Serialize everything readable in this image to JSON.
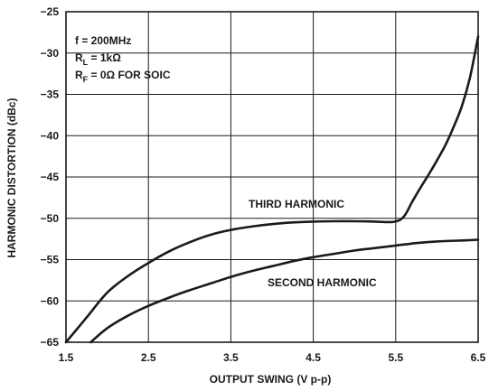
{
  "chart_data": {
    "type": "line",
    "xlabel": "OUTPUT SWING (V p-p)",
    "ylabel": "HARMONIC DISTORTION (dBc)",
    "xlim": [
      1.5,
      6.5
    ],
    "ylim": [
      -65,
      -25
    ],
    "grid": true,
    "x_ticks": [
      1.5,
      2.5,
      3.5,
      4.5,
      5.5,
      6.5
    ],
    "x_tick_labels": [
      "1.5",
      "2.5",
      "3.5",
      "4.5",
      "5.5",
      "6.5"
    ],
    "y_ticks": [
      -25,
      -30,
      -35,
      -40,
      -45,
      -50,
      -55,
      -60,
      -65
    ],
    "y_tick_labels": [
      "−25",
      "−30",
      "−35",
      "−40",
      "−45",
      "−50",
      "−55",
      "−60",
      "−65"
    ],
    "conditions": {
      "freq": "f = 200MHz",
      "rl_main": "R",
      "rl_sub": "L",
      "rl_rest": " = 1kΩ",
      "rf_main": "R",
      "rf_sub": "F",
      "rf_rest": " = 0Ω FOR SOIC"
    },
    "series": [
      {
        "name": "THIRD HARMONIC",
        "x": [
          1.5,
          1.75,
          2.0,
          2.25,
          2.5,
          2.75,
          3.0,
          3.25,
          3.5,
          3.75,
          4.0,
          4.25,
          4.5,
          4.75,
          5.0,
          5.25,
          5.45,
          5.55,
          5.62,
          5.7,
          5.8,
          5.9,
          6.0,
          6.1,
          6.2,
          6.3,
          6.4,
          6.5
        ],
        "y": [
          -65.0,
          -62.0,
          -59.0,
          -57.0,
          -55.4,
          -54.0,
          -52.9,
          -52.0,
          -51.4,
          -51.0,
          -50.7,
          -50.5,
          -50.4,
          -50.35,
          -50.35,
          -50.4,
          -50.45,
          -50.2,
          -49.5,
          -48.0,
          -46.3,
          -44.7,
          -43.0,
          -41.2,
          -39.0,
          -36.5,
          -33.0,
          -28.0
        ]
      },
      {
        "name": "SECOND HARMONIC",
        "x": [
          1.8,
          2.0,
          2.25,
          2.5,
          2.75,
          3.0,
          3.25,
          3.5,
          3.75,
          4.0,
          4.25,
          4.5,
          4.75,
          5.0,
          5.25,
          5.5,
          5.75,
          6.0,
          6.25,
          6.5
        ],
        "y": [
          -65.0,
          -63.3,
          -61.8,
          -60.6,
          -59.6,
          -58.7,
          -57.9,
          -57.1,
          -56.4,
          -55.8,
          -55.2,
          -54.7,
          -54.3,
          -53.9,
          -53.6,
          -53.3,
          -53.0,
          -52.8,
          -52.7,
          -52.6
        ]
      }
    ]
  }
}
